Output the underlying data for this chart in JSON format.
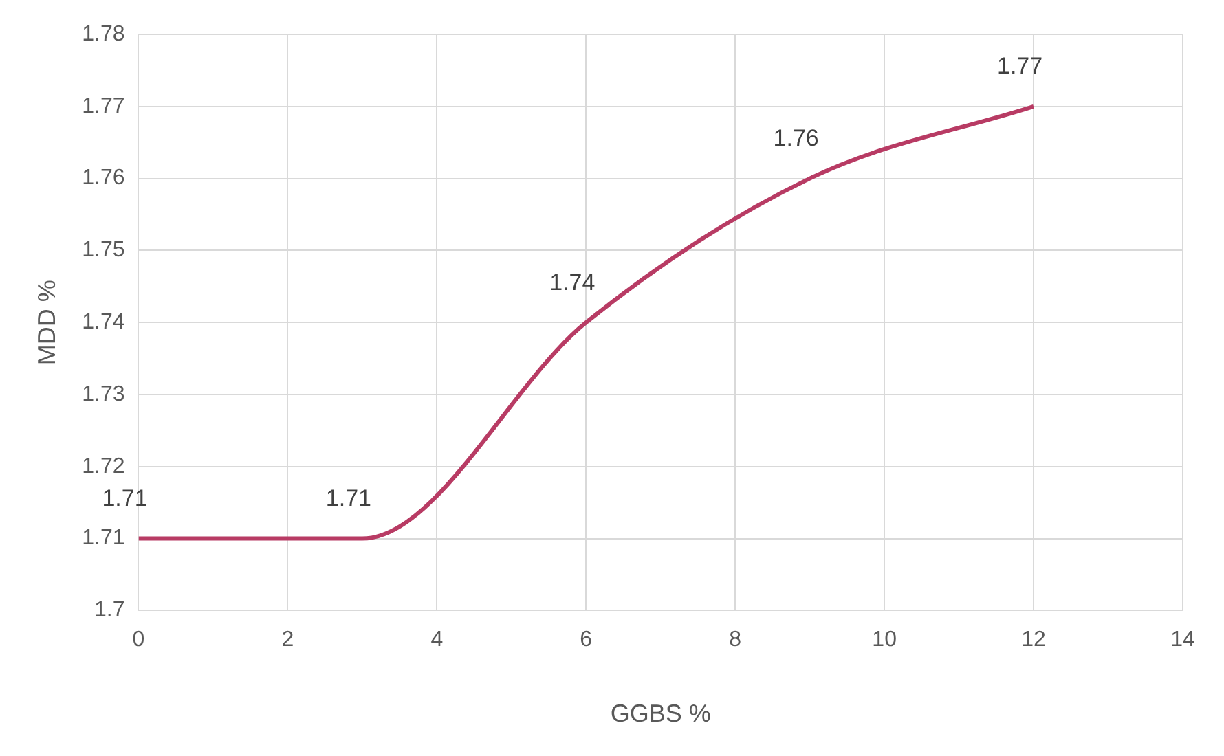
{
  "chart_data": {
    "type": "line",
    "xlabel": "GGBS %",
    "ylabel": "MDD %",
    "x": [
      0,
      3,
      6,
      9,
      12
    ],
    "series": [
      {
        "color": "#b83b64",
        "values": [
          1.71,
          1.71,
          1.74,
          1.76,
          1.77
        ]
      }
    ],
    "xlim": [
      0,
      14
    ],
    "xticks": [
      0,
      2,
      4,
      6,
      8,
      10,
      12,
      14
    ],
    "ylim": [
      1.7,
      1.78
    ],
    "yticks": [
      {
        "value": 1.7,
        "label": "1.7"
      },
      1.71,
      1.72,
      1.73,
      1.74,
      1.75,
      1.76,
      1.77,
      1.78
    ],
    "grid": true,
    "legend": false,
    "marker": "none",
    "line_style": "solid",
    "data_labels": true
  }
}
